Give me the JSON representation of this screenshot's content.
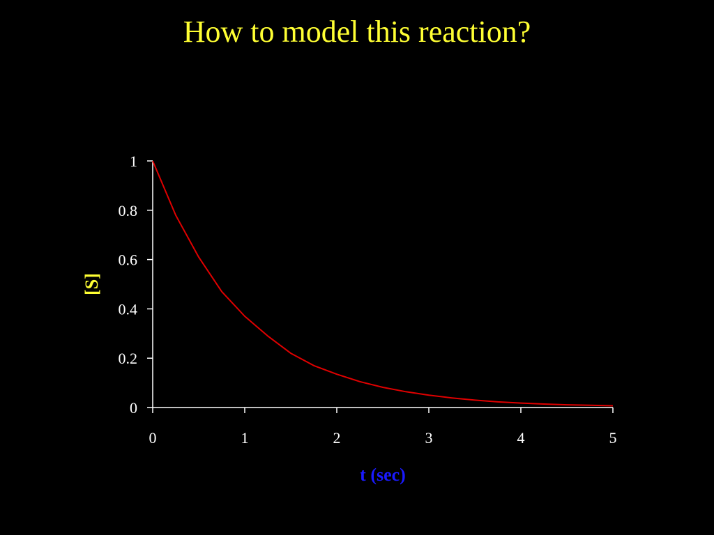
{
  "slide": {
    "title": "How to model this reaction?"
  },
  "colors": {
    "background": "#000000",
    "title": "#ffff33",
    "axis": "#ffffff",
    "ylabel": "#ffff33",
    "xlabel": "#1a1aff",
    "curve": "#e00000"
  },
  "chart_data": {
    "type": "line",
    "title": "",
    "xlabel": "t (sec)",
    "ylabel": "[S]",
    "xlim": [
      0,
      5
    ],
    "ylim": [
      0,
      1
    ],
    "xticks": [
      "0",
      "1",
      "2",
      "3",
      "4",
      "5"
    ],
    "yticks": [
      "0",
      "0.2",
      "0.4",
      "0.6",
      "0.8",
      "1"
    ],
    "grid": false,
    "legend": "none",
    "series": [
      {
        "x": [
          0,
          0.25,
          0.5,
          0.75,
          1.0,
          1.25,
          1.5,
          1.75,
          2.0,
          2.25,
          2.5,
          2.75,
          3.0,
          3.25,
          3.5,
          3.75,
          4.0,
          4.25,
          4.5,
          4.75,
          5.0
        ],
        "y": [
          1.0,
          0.78,
          0.61,
          0.47,
          0.37,
          0.29,
          0.22,
          0.17,
          0.135,
          0.105,
          0.082,
          0.064,
          0.05,
          0.039,
          0.03,
          0.023,
          0.018,
          0.014,
          0.011,
          0.009,
          0.007
        ]
      }
    ]
  }
}
